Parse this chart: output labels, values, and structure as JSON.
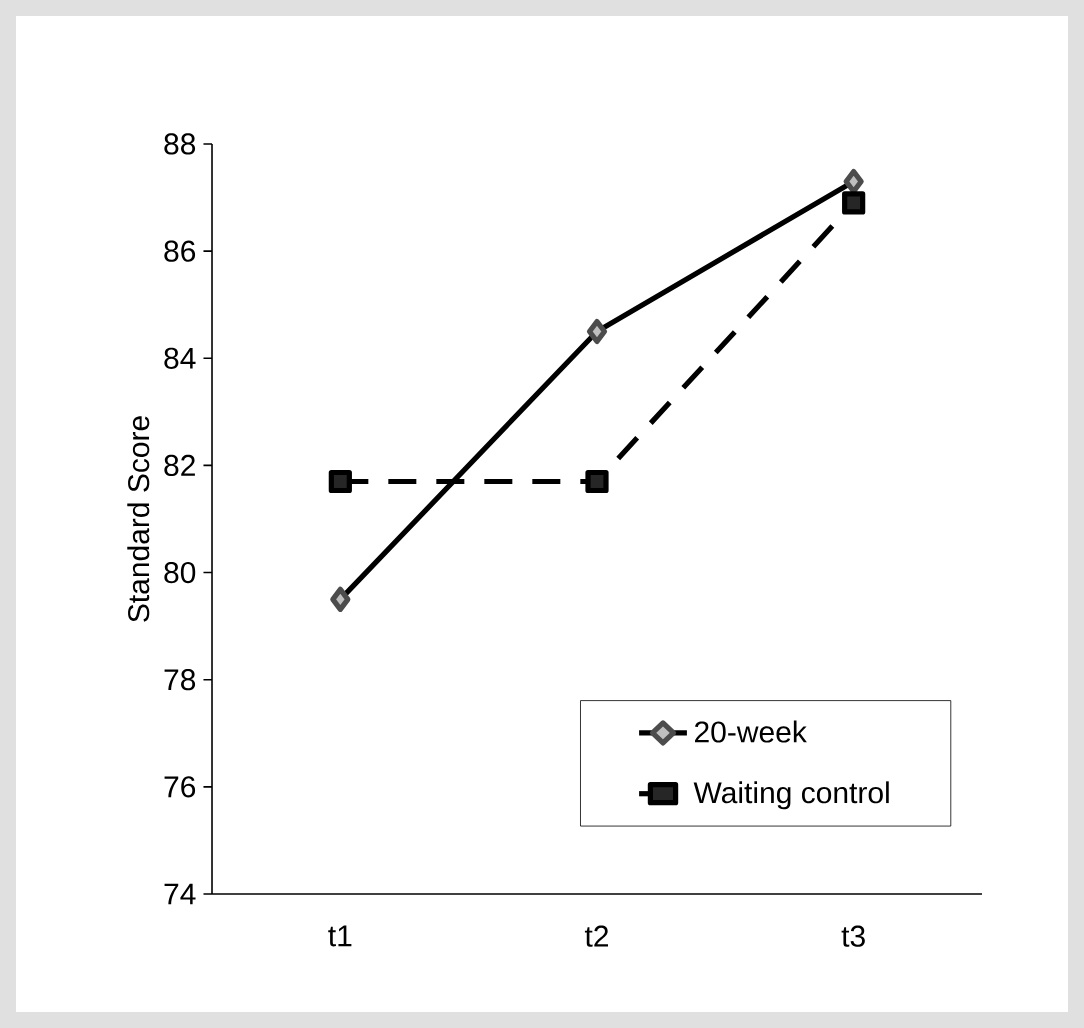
{
  "chart_data": {
    "type": "line",
    "ylabel": "Standard Score",
    "categories": [
      "t1",
      "t2",
      "t3"
    ],
    "series": [
      {
        "name": "20-week",
        "color": "#000000",
        "marker": "diamond",
        "line_style": "solid",
        "values": [
          79.5,
          84.5,
          87.3
        ]
      },
      {
        "name": "Waiting control",
        "color": "#000000",
        "marker": "square",
        "line_style": "dashed",
        "values": [
          81.7,
          81.7,
          86.9
        ]
      }
    ],
    "ylim": [
      74,
      88
    ],
    "yticks": [
      74,
      76,
      78,
      80,
      82,
      84,
      86,
      88
    ],
    "grid": false,
    "legend": "bottom right"
  }
}
